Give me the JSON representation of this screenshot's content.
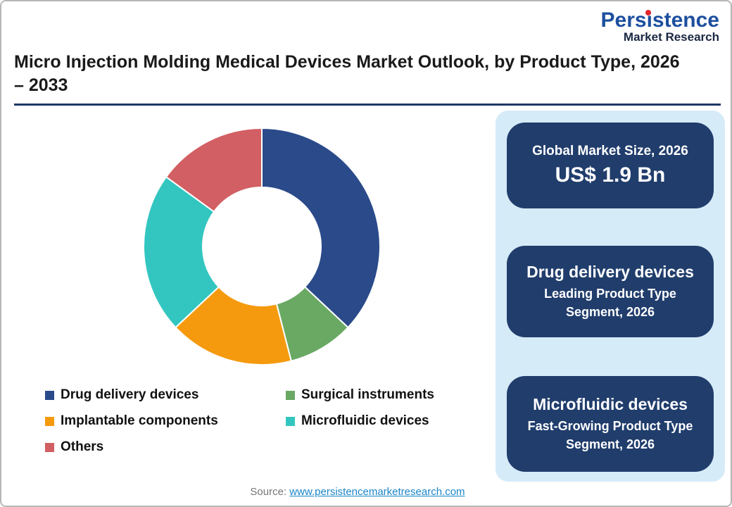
{
  "page": {
    "title": "Micro Injection Molding Medical Devices Market Outlook, by Product Type, 2026 – 2033",
    "source_label": "Source:",
    "source_link": "www.persistencemarketresearch.com"
  },
  "logo": {
    "name": "Persistence",
    "tagline": "Market Research",
    "name_color": "#1D4F9E",
    "tagline_color": "#1A2742",
    "dot_color": "#E3242B"
  },
  "chart_data": {
    "type": "pie",
    "subtype": "donut",
    "title": "",
    "categories": [
      "Drug delivery devices",
      "Surgical instruments",
      "Implantable components",
      "Microfluidic devices",
      "Others"
    ],
    "values": [
      37,
      9,
      17,
      22,
      15
    ],
    "values_unit": "% share (estimated from segment angles; no data labels shown)",
    "colors": [
      "#2A4A8A",
      "#6AA964",
      "#F59A0E",
      "#33C6C0",
      "#D25F63"
    ],
    "start_angle_deg": 0,
    "direction": "clockwise",
    "inner_radius_ratio": 0.5,
    "separator_color": "#FFFFFF",
    "legend_position": "bottom-left, two columns",
    "data_labels": false
  },
  "cards": [
    {
      "title": "Global Market Size, 2026",
      "value": "US$ 1.9 Bn"
    },
    {
      "title": "Drug delivery devices",
      "subtitle": "Leading Product Type Segment, 2026"
    },
    {
      "title": "Microfluidic devices",
      "subtitle": "Fast-Growing Product Type Segment, 2026"
    }
  ],
  "theme": {
    "panel_bg": "#D6EBF8",
    "card_bg": "#203D6C",
    "title_rule": "#1F3864",
    "link_color": "#1B86C8"
  }
}
